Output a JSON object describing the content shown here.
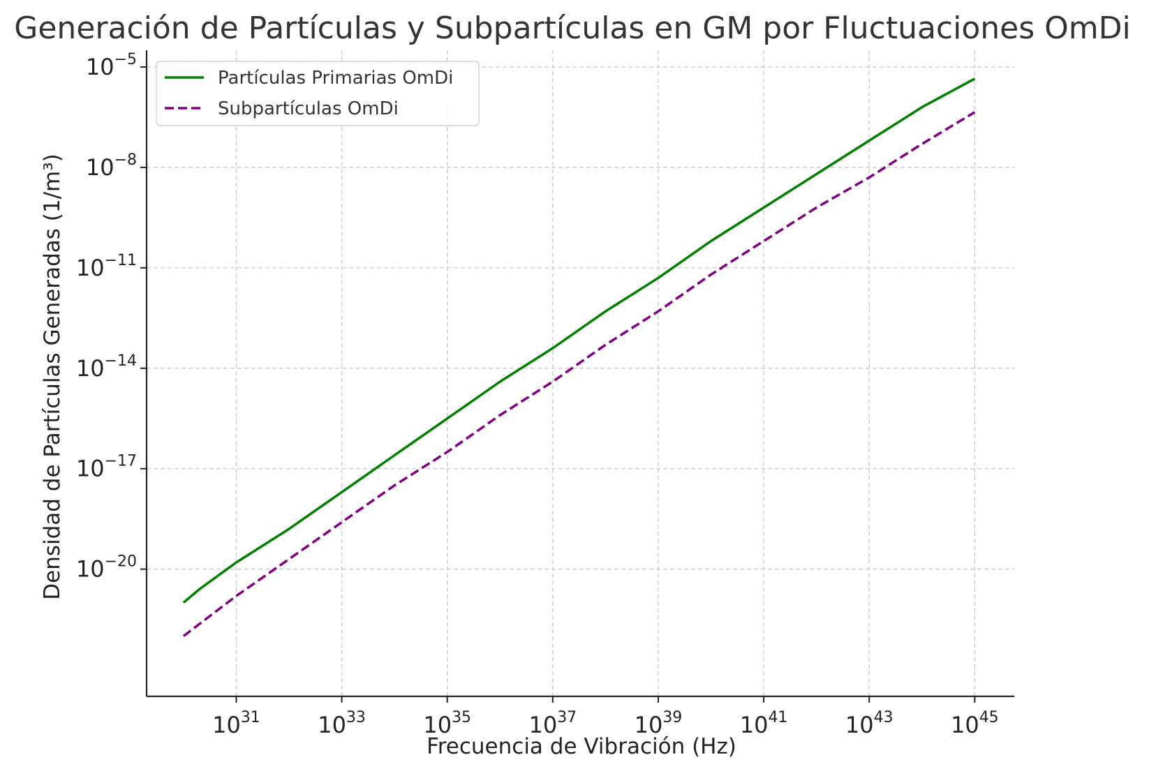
{
  "chart_data": {
    "type": "line",
    "title": "Generación de Partículas y Subpartículas en GM por Fluctuaciones OmDi",
    "xlabel": "Frecuencia de Vibración (Hz)",
    "ylabel": "Densidad de Partículas Generadas (1/m³)",
    "xscale": "log",
    "yscale": "log",
    "xlim_log10": [
      29.3,
      45.75
    ],
    "ylim_log10": [
      -23.8,
      -4.5
    ],
    "x_ticks": [
      {
        "base": "10",
        "exp": "31",
        "log10": 31
      },
      {
        "base": "10",
        "exp": "33",
        "log10": 33
      },
      {
        "base": "10",
        "exp": "35",
        "log10": 35
      },
      {
        "base": "10",
        "exp": "37",
        "log10": 37
      },
      {
        "base": "10",
        "exp": "39",
        "log10": 39
      },
      {
        "base": "10",
        "exp": "41",
        "log10": 41
      },
      {
        "base": "10",
        "exp": "43",
        "log10": 43
      },
      {
        "base": "10",
        "exp": "45",
        "log10": 45
      }
    ],
    "y_ticks": [
      {
        "base": "10",
        "exp": "−5",
        "log10": -5
      },
      {
        "base": "10",
        "exp": "−8",
        "log10": -8
      },
      {
        "base": "10",
        "exp": "−11",
        "log10": -11
      },
      {
        "base": "10",
        "exp": "−14",
        "log10": -14
      },
      {
        "base": "10",
        "exp": "−17",
        "log10": -17
      },
      {
        "base": "10",
        "exp": "−20",
        "log10": -20
      }
    ],
    "grid": true,
    "legend_position": "top-left",
    "series": [
      {
        "name": "Partículas Primarias OmDi",
        "color": "#008000",
        "style": "solid",
        "x_log10": [
          30.0,
          30.3,
          31.0,
          32.0,
          33.0,
          34.0,
          35.0,
          36.0,
          37.0,
          38.0,
          39.0,
          40.0,
          41.0,
          42.0,
          43.0,
          44.0,
          45.0
        ],
        "y_log10": [
          -21.0,
          -20.6,
          -19.8,
          -18.8,
          -17.7,
          -16.6,
          -15.5,
          -14.4,
          -13.4,
          -12.3,
          -11.3,
          -10.2,
          -9.2,
          -8.2,
          -7.2,
          -6.2,
          -5.35
        ]
      },
      {
        "name": "Subpartículas OmDi",
        "color": "#800080",
        "style": "dashed",
        "x_log10": [
          30.0,
          31.0,
          32.0,
          33.0,
          34.0,
          35.0,
          36.0,
          37.0,
          38.0,
          39.0,
          40.0,
          41.0,
          42.0,
          43.0,
          44.0,
          45.0
        ],
        "y_log10": [
          -22.0,
          -20.8,
          -19.7,
          -18.6,
          -17.5,
          -16.5,
          -15.4,
          -14.4,
          -13.3,
          -12.3,
          -11.2,
          -10.2,
          -9.2,
          -8.3,
          -7.3,
          -6.35
        ]
      }
    ]
  }
}
